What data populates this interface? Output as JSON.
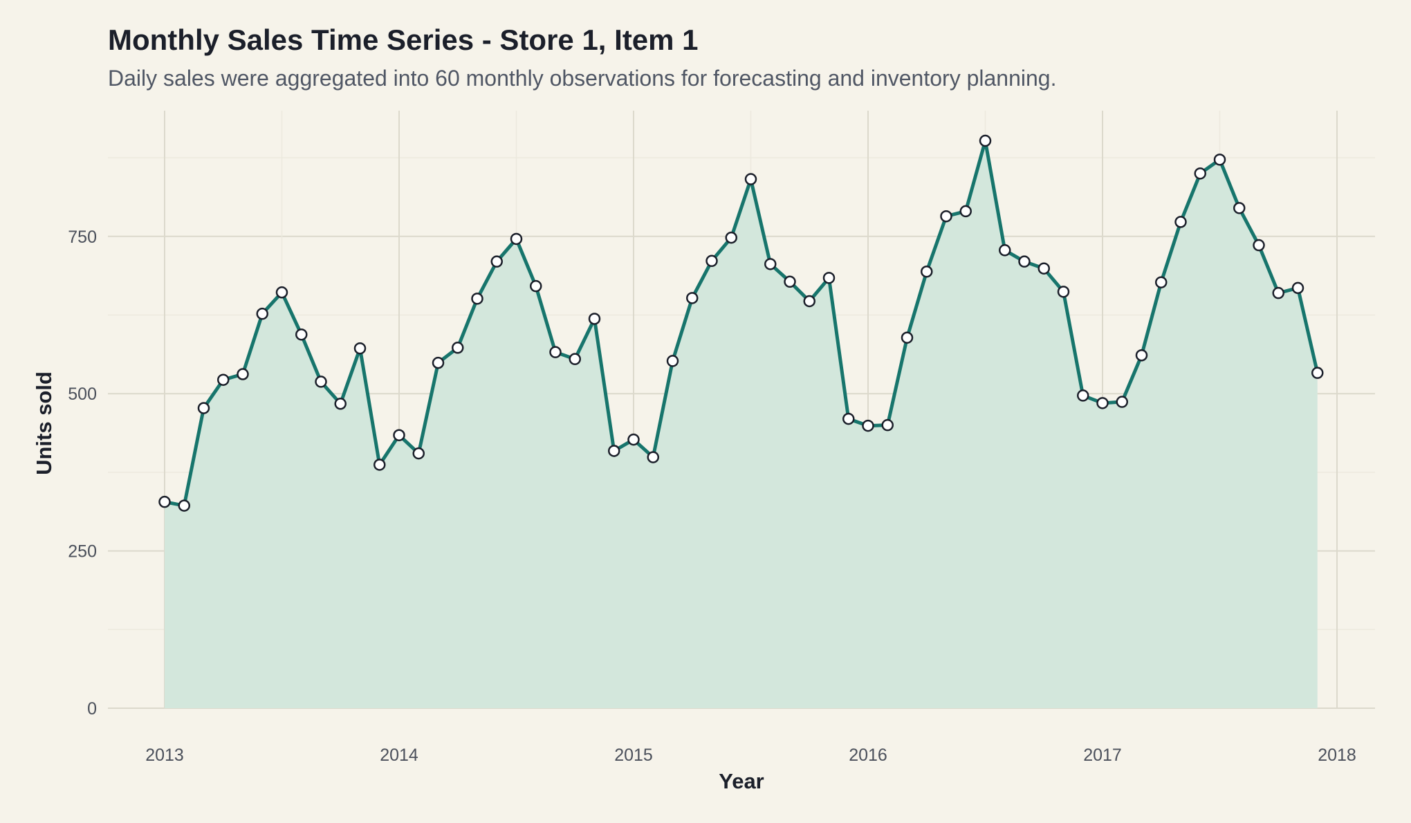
{
  "title": "Monthly Sales Time Series - Store 1, Item 1",
  "subtitle": "Daily sales were aggregated into 60 monthly observations for forecasting and inventory planning.",
  "colors": {
    "background": "#f6f3ea",
    "line": "#17756c",
    "area_fill": "#d3e7dc",
    "marker_fill": "#ffffff",
    "marker_stroke": "#1b1f2a",
    "grid_major": "#dcd9cc",
    "grid_minor": "#ece9de"
  },
  "chart_data": {
    "type": "area",
    "title": "Monthly Sales Time Series - Store 1, Item 1",
    "subtitle": "Daily sales were aggregated into 60 monthly observations for forecasting and inventory planning.",
    "xlabel": "Year",
    "ylabel": "Units sold",
    "x_start": "2013-01",
    "x_frequency": "monthly",
    "xlim": [
      "2012-10",
      "2018-02"
    ],
    "ylim": [
      0,
      910
    ],
    "x_ticks": [
      "2013",
      "2014",
      "2015",
      "2016",
      "2017",
      "2018"
    ],
    "y_ticks": [
      0,
      250,
      500,
      750
    ],
    "grid": true,
    "markers": true,
    "series": [
      {
        "values": [
          328,
          322,
          477,
          522,
          531,
          627,
          661,
          594,
          519,
          484,
          572,
          387,
          434,
          405,
          549,
          573,
          651,
          710,
          746,
          671,
          566,
          555,
          619,
          409,
          427,
          399,
          552,
          652,
          711,
          748,
          841,
          706,
          678,
          647,
          684,
          460,
          449,
          450,
          589,
          694,
          782,
          790,
          902,
          728,
          710,
          699,
          662,
          497,
          485,
          487,
          561,
          677,
          773,
          850,
          872,
          795,
          736,
          660,
          668,
          533
        ]
      }
    ]
  }
}
